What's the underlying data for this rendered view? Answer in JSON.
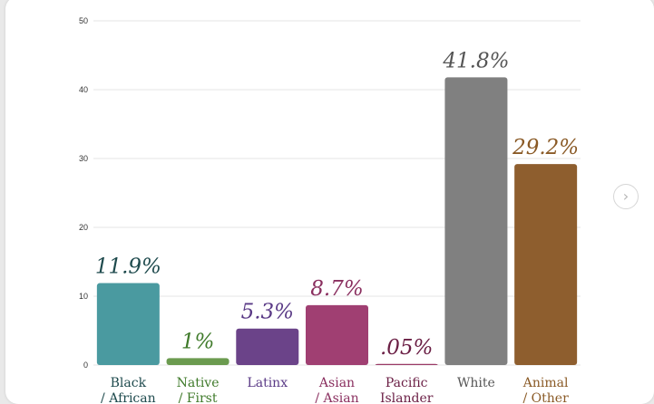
{
  "chart_data": {
    "type": "bar",
    "ylim": [
      0,
      50
    ],
    "yticks": [
      "0",
      "10",
      "20",
      "30",
      "40",
      "50"
    ],
    "grid": true,
    "categories": [
      {
        "label_lines": [
          "Black",
          "/ African"
        ],
        "value": 11.9,
        "data_label": "11.9%",
        "color": "#4a9aa0",
        "label_color": "#1e4a4d"
      },
      {
        "label_lines": [
          "Native",
          "/ First"
        ],
        "value": 1,
        "data_label": "1%",
        "color": "#6b9b4f",
        "label_color": "#3f7a2a"
      },
      {
        "label_lines": [
          "Latinx"
        ],
        "value": 5.3,
        "data_label": "5.3%",
        "color": "#6b4389",
        "label_color": "#5a3a86"
      },
      {
        "label_lines": [
          "Asian",
          "/ Asian"
        ],
        "value": 8.7,
        "data_label": "8.7%",
        "color": "#a03f72",
        "label_color": "#8a2f5f"
      },
      {
        "label_lines": [
          "Pacific",
          "Islander"
        ],
        "value": 0.05,
        "data_label": ".05%",
        "color": "#9a3a66",
        "label_color": "#6a1e44"
      },
      {
        "label_lines": [
          "White"
        ],
        "value": 41.8,
        "data_label": "41.8%",
        "color": "#808080",
        "label_color": "#555555"
      },
      {
        "label_lines": [
          "Animal",
          "/ Other"
        ],
        "value": 29.2,
        "data_label": "29.2%",
        "color": "#8e5e2e",
        "label_color": "#8a5a26"
      }
    ]
  },
  "controls": {
    "next_icon": "chevron-right-icon",
    "next_glyph": "›"
  }
}
